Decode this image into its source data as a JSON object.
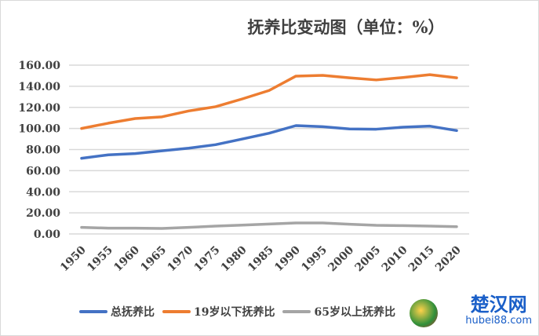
{
  "chart_data": {
    "type": "line",
    "title": "抚养比变动图（单位：%）",
    "x": [
      1950,
      1955,
      1960,
      1965,
      1970,
      1975,
      1980,
      1985,
      1990,
      1995,
      2000,
      2005,
      2010,
      2015,
      2020
    ],
    "x_tick_labels": [
      "1950",
      "1955",
      "1960",
      "1965",
      "1970",
      "1975",
      "1980",
      "1985",
      "1990",
      "1995",
      "2000",
      "2005",
      "2010",
      "2015",
      "2020"
    ],
    "y_tick_labels": [
      "0.00",
      "20.00",
      "40.00",
      "60.00",
      "80.00",
      "100.00",
      "120.00",
      "140.00",
      "160.00"
    ],
    "ylim": [
      0,
      160
    ],
    "grid": true,
    "legend_position": "bottom",
    "series": [
      {
        "name": "总抚养比",
        "color": "#4472c4",
        "values": [
          71.7,
          75,
          76.2,
          78.8,
          81.3,
          84.6,
          90,
          95.5,
          102.7,
          101.7,
          99.5,
          99.3,
          101.2,
          102.2,
          98
        ]
      },
      {
        "name": "19岁以下抚养比",
        "color": "#ed7d31",
        "values": [
          100,
          105,
          109.4,
          111,
          116.6,
          120.6,
          128,
          136,
          149.6,
          150.3,
          148,
          146,
          148.3,
          151,
          148
        ]
      },
      {
        "name": "65岁以上抚养比",
        "color": "#a5a5a5",
        "values": [
          6.2,
          5.5,
          5.5,
          5.2,
          6.2,
          7.4,
          8.4,
          9.4,
          10.4,
          10.4,
          9.2,
          8.2,
          7.9,
          7.4,
          6.9
        ]
      }
    ]
  },
  "watermark": {
    "cn": "楚汉网",
    "en": "hubei88.com"
  }
}
